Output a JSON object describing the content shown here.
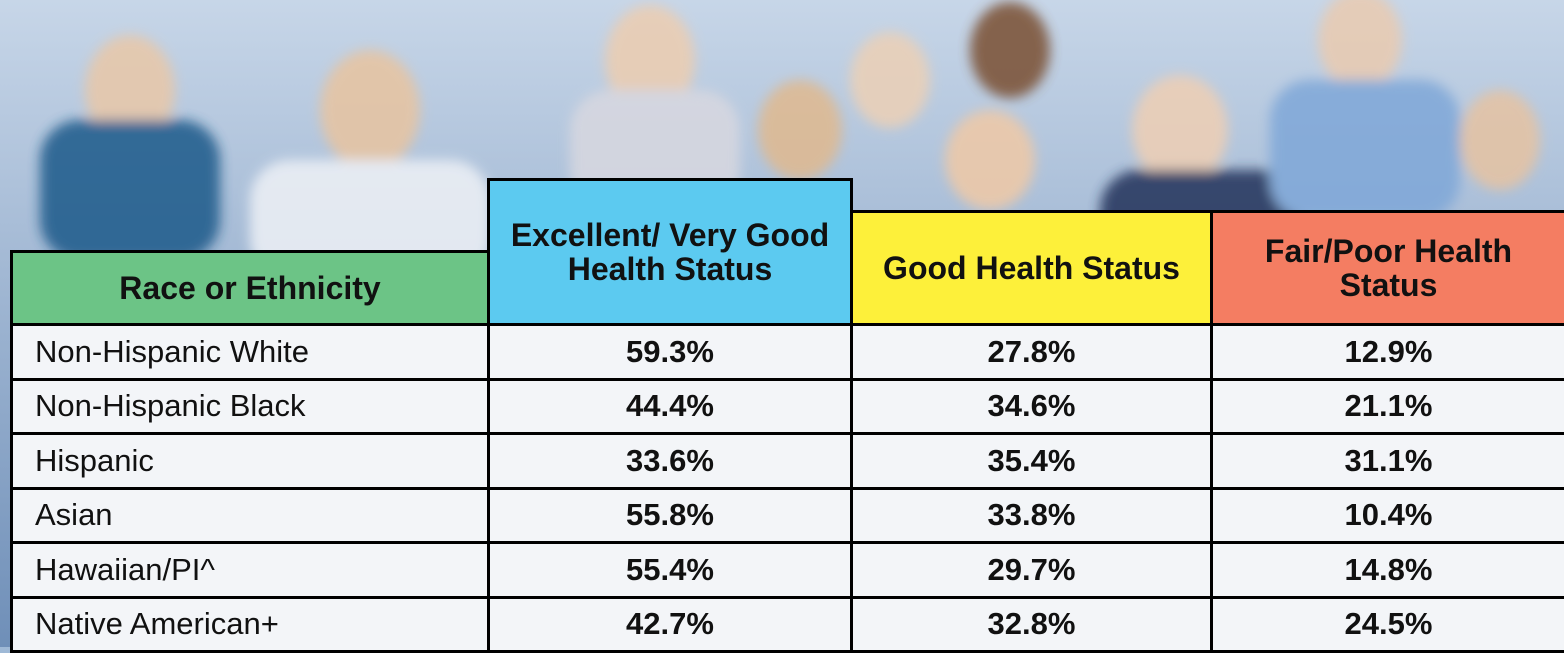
{
  "table": {
    "headers": [
      "Race or Ethnicity",
      "Excellent/ Very Good Health Status",
      "Good Health Status",
      "Fair/Poor Health Status"
    ],
    "rows": [
      [
        "Non-Hispanic White",
        "59.3%",
        "27.8%",
        "12.9%"
      ],
      [
        "Non-Hispanic Black",
        "44.4%",
        "34.6%",
        "21.1%"
      ],
      [
        "Hispanic",
        "33.6%",
        "35.4%",
        "31.1%"
      ],
      [
        "Asian",
        "55.8%",
        "33.8%",
        "10.4%"
      ],
      [
        "Hawaiian/PI^",
        "55.4%",
        "29.7%",
        "14.8%"
      ],
      [
        "Native American+",
        "42.7%",
        "32.8%",
        "24.5%"
      ]
    ]
  }
}
